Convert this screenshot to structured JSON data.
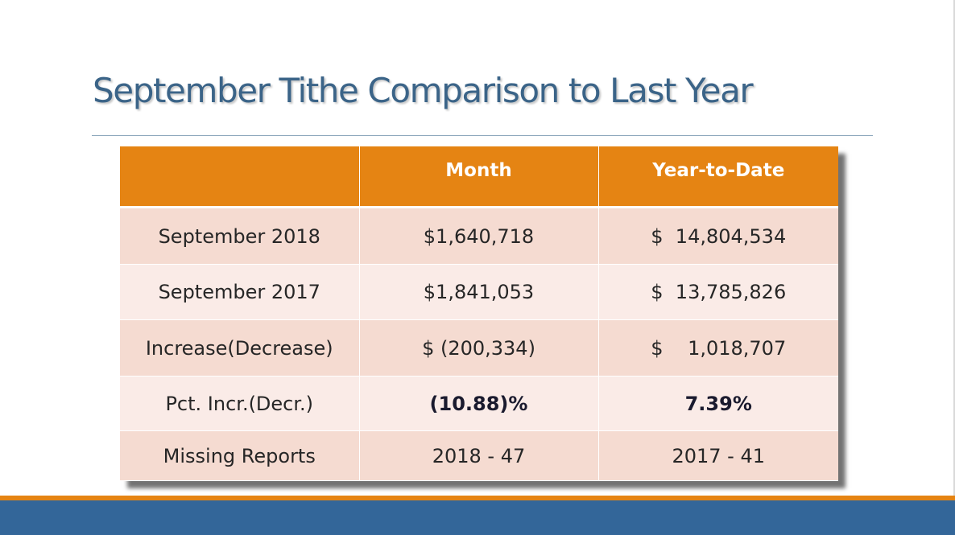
{
  "slide": {
    "title": "September Tithe Comparison to Last Year"
  },
  "table": {
    "headers": [
      "",
      "Month",
      "Year-to-Date"
    ],
    "rows": [
      [
        "September 2018",
        "$1,640,718",
        "$  14,804,534"
      ],
      [
        "September 2017",
        "$1,841,053",
        "$  13,785,826"
      ],
      [
        "Increase(Decrease)",
        "$ (200,334)",
        "$    1,018,707"
      ],
      [
        "Pct. Incr.(Decr.)",
        "(10.88)%",
        "7.39%"
      ],
      [
        "Missing Reports",
        "2018 - 47",
        "2017 - 41"
      ]
    ]
  },
  "colors": {
    "title": "#3b6488",
    "header_fill": "#e58413",
    "row_band_dark": "#f5dbd1",
    "row_band_light": "#faebe7",
    "footer_orange": "#e58413",
    "footer_blue": "#336699"
  }
}
